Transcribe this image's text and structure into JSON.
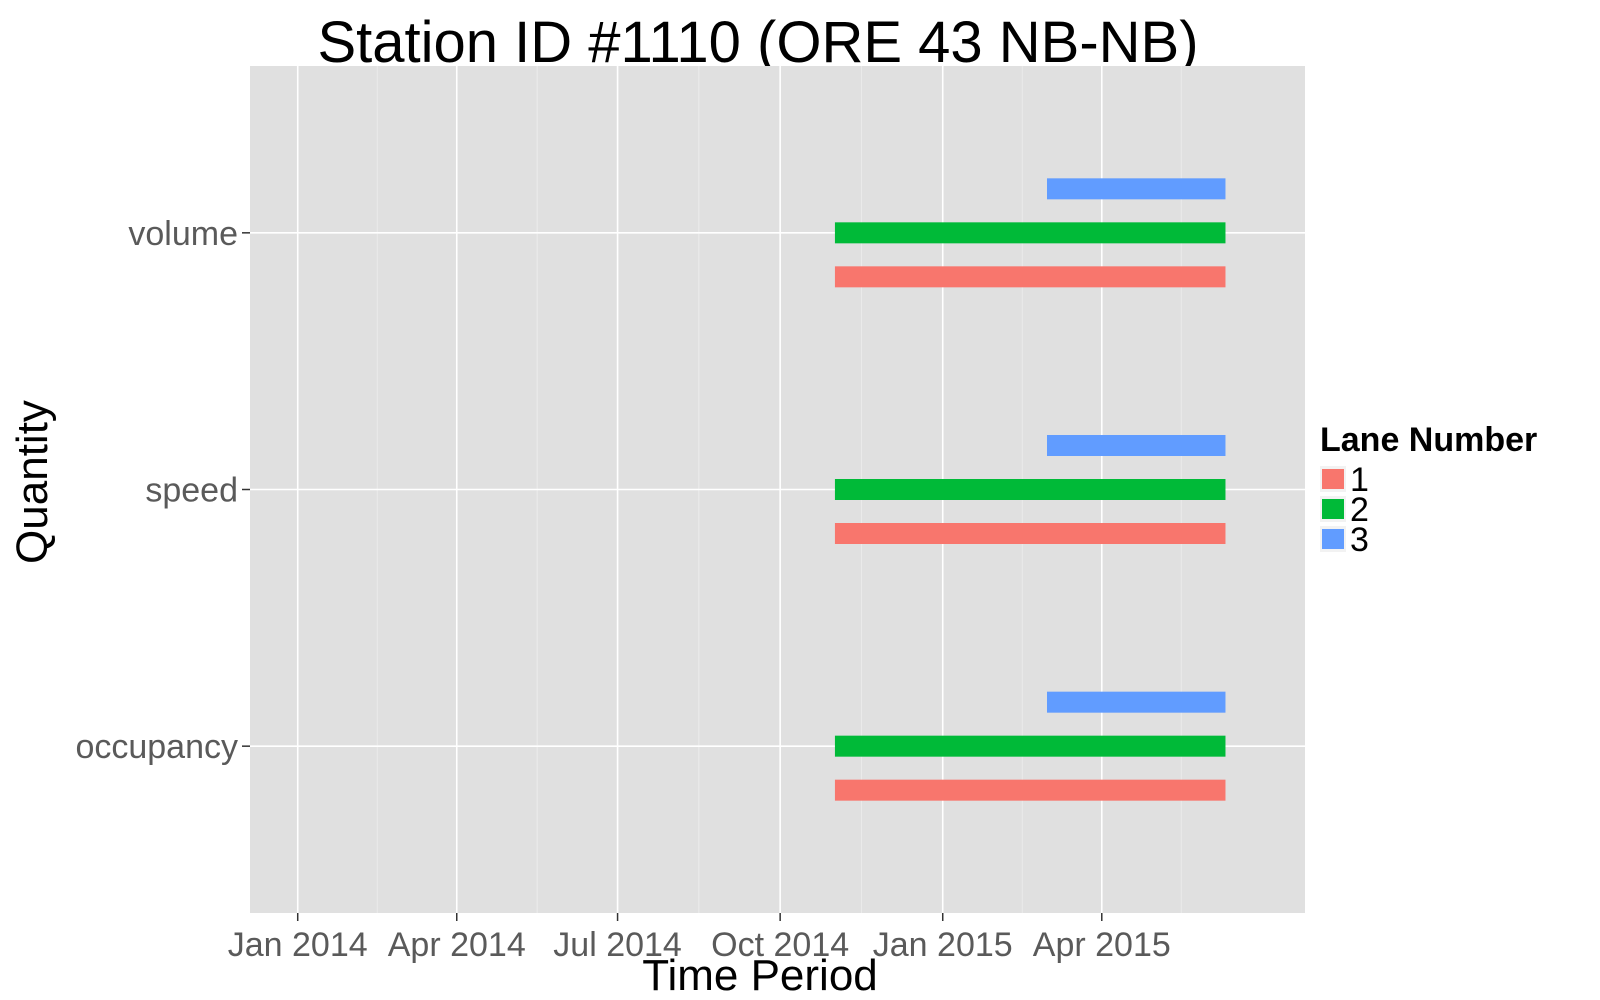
{
  "chart_data": {
    "type": "timeline",
    "title": "Station ID #1110 (ORE 43 NB-NB)",
    "xlabel": "Time Period",
    "ylabel": "Quantity",
    "x_ticks": [
      {
        "date": "2014-01-01",
        "label": "Jan 2014"
      },
      {
        "date": "2014-04-01",
        "label": "Apr 2014"
      },
      {
        "date": "2014-07-01",
        "label": "Jul 2014"
      },
      {
        "date": "2014-10-01",
        "label": "Oct 2014"
      },
      {
        "date": "2015-01-01",
        "label": "Jan 2015"
      },
      {
        "date": "2015-04-01",
        "label": "Apr 2015"
      }
    ],
    "xlim": [
      "2013-12-05",
      "2015-07-25"
    ],
    "categories": [
      "volume",
      "speed",
      "occupancy"
    ],
    "legend": {
      "title": "Lane Number",
      "placement": "right",
      "entries": [
        {
          "label": "1",
          "color": "#F8766D"
        },
        {
          "label": "2",
          "color": "#00BA38"
        },
        {
          "label": "3",
          "color": "#619CFF"
        }
      ]
    },
    "series": [
      {
        "name": "1",
        "color": "#F8766D",
        "segments": [
          {
            "category": "volume",
            "start": "2014-11-01",
            "end": "2015-06-10"
          },
          {
            "category": "speed",
            "start": "2014-11-01",
            "end": "2015-06-10"
          },
          {
            "category": "occupancy",
            "start": "2014-11-01",
            "end": "2015-06-10"
          }
        ]
      },
      {
        "name": "2",
        "color": "#00BA38",
        "segments": [
          {
            "category": "volume",
            "start": "2014-11-01",
            "end": "2015-06-10"
          },
          {
            "category": "speed",
            "start": "2014-11-01",
            "end": "2015-06-10"
          },
          {
            "category": "occupancy",
            "start": "2014-11-01",
            "end": "2015-06-10"
          }
        ]
      },
      {
        "name": "3",
        "color": "#619CFF",
        "segments": [
          {
            "category": "volume",
            "start": "2015-03-01",
            "end": "2015-06-10"
          },
          {
            "category": "speed",
            "start": "2015-03-01",
            "end": "2015-06-10"
          },
          {
            "category": "occupancy",
            "start": "2015-03-01",
            "end": "2015-06-10"
          }
        ]
      }
    ],
    "grid": true,
    "panel_color": "#E0E0E0",
    "grid_color": "#FFFFFF"
  }
}
